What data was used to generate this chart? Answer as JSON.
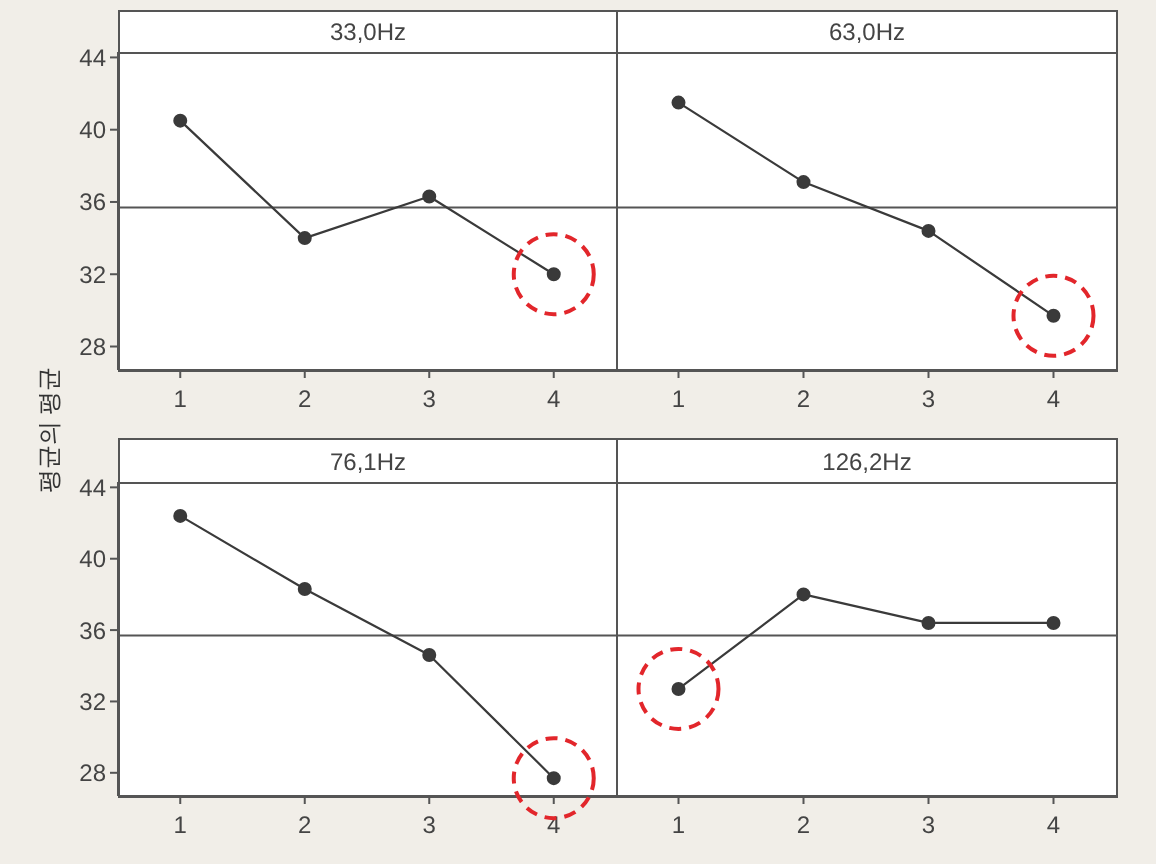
{
  "chart_data": [
    {
      "type": "line",
      "title": "33,0Hz",
      "ylabel": "평균의 평균",
      "categories": [
        "1",
        "2",
        "3",
        "4"
      ],
      "values": [
        40.5,
        34.0,
        36.3,
        32.0
      ],
      "color": "#3a3a3a",
      "ylim": [
        26.7,
        44.3
      ],
      "yticks": [
        28,
        32,
        36,
        40,
        44
      ],
      "marker": "circle",
      "ref_lines": [
        {
          "axis": "y",
          "value": 35.7,
          "color": "#555555"
        }
      ]
    },
    {
      "type": "line",
      "title": "63,0Hz",
      "categories": [
        "1",
        "2",
        "3",
        "4"
      ],
      "values": [
        41.5,
        37.1,
        34.4,
        29.7
      ],
      "color": "#3a3a3a",
      "ylim": [
        26.7,
        44.3
      ],
      "yticks": [
        28,
        32,
        36,
        40,
        44
      ],
      "tick_labels": "x",
      "marker": "circle",
      "ref_lines": [
        {
          "axis": "y",
          "value": 35.7,
          "color": "#555555"
        }
      ]
    },
    {
      "type": "line",
      "title": "76,1Hz",
      "categories": [
        "1",
        "2",
        "3",
        "4"
      ],
      "values": [
        42.4,
        38.3,
        34.6,
        27.7
      ],
      "color": "#3a3a3a",
      "ylim": [
        26.7,
        44.3
      ],
      "yticks": [
        28,
        32,
        36,
        40,
        44
      ],
      "marker": "circle",
      "ref_lines": [
        {
          "axis": "y",
          "value": 35.7,
          "color": "#555555"
        }
      ]
    },
    {
      "type": "line",
      "title": "126,2Hz",
      "categories": [
        "1",
        "2",
        "3",
        "4"
      ],
      "values": [
        32.7,
        38.0,
        36.4,
        36.4
      ],
      "color": "#3a3a3a",
      "ylim": [
        26.7,
        44.3
      ],
      "yticks": [
        28,
        32,
        36,
        40,
        44
      ],
      "tick_labels": "x",
      "marker": "circle",
      "ref_lines": [
        {
          "axis": "y",
          "value": 35.7,
          "color": "#555555"
        }
      ]
    }
  ]
}
